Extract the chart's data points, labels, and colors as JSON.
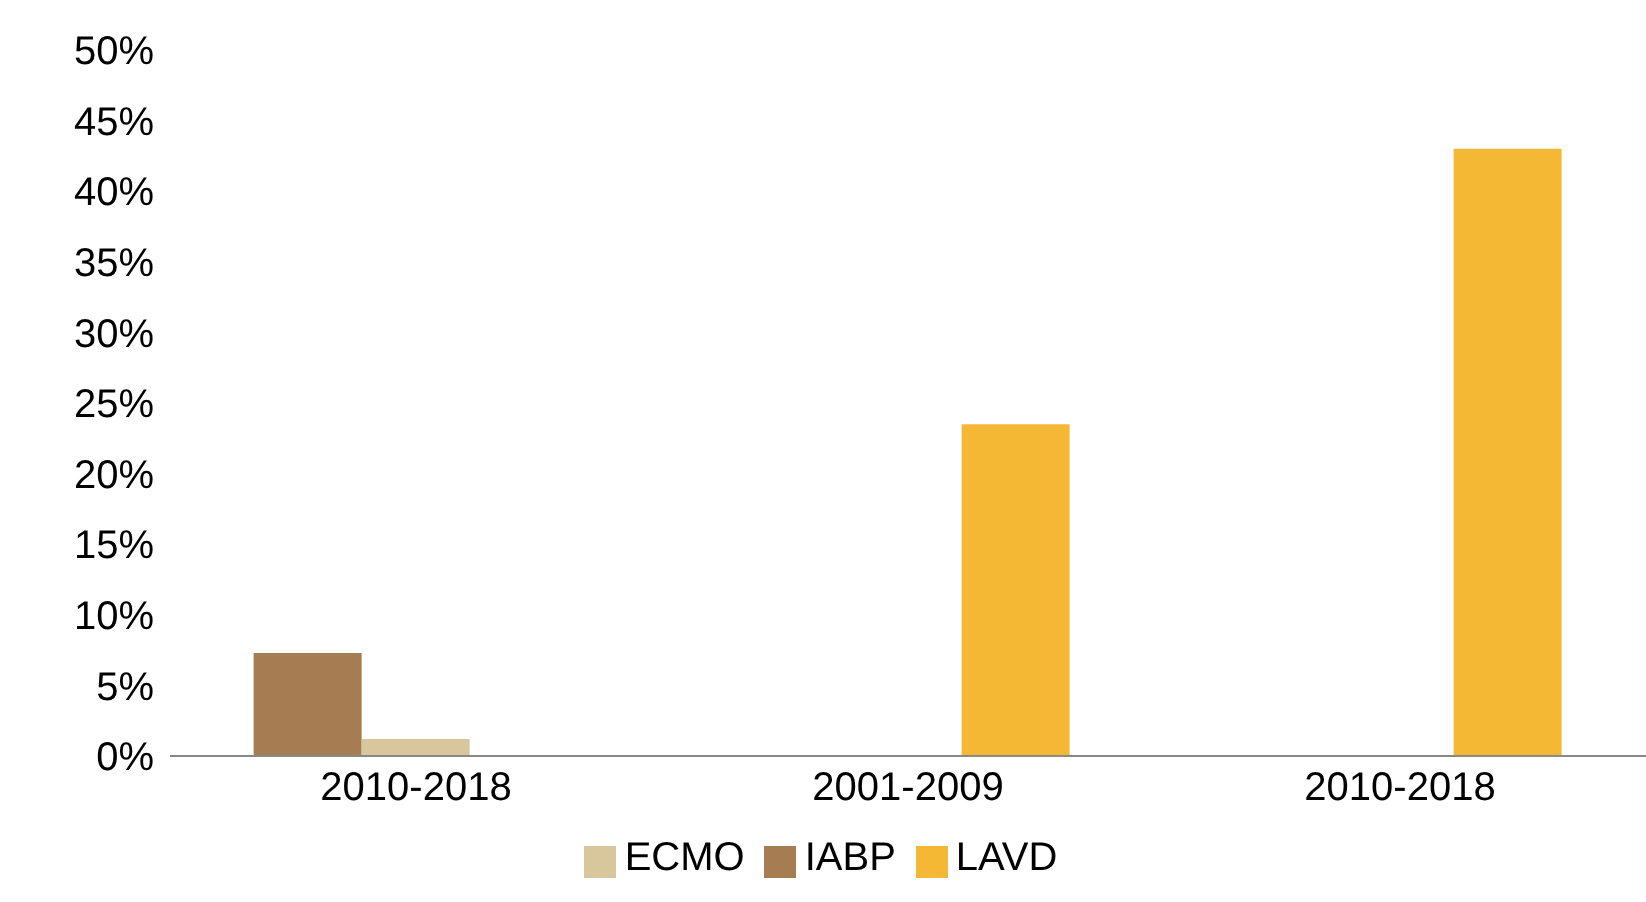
{
  "chart_data": {
    "type": "bar",
    "categories": [
      "2010-2018",
      "2001-2009",
      "2010-2018"
    ],
    "series": [
      {
        "name": "IABP",
        "color": "#a67c52",
        "values": [
          7.3,
          null,
          null
        ]
      },
      {
        "name": "ECMO",
        "color": "#d8c69c",
        "values": [
          1.2,
          null,
          null
        ]
      },
      {
        "name": "LAVD",
        "color": "#f4b834",
        "values": [
          null,
          23.5,
          43
        ]
      }
    ],
    "ylim": [
      0,
      50
    ],
    "yticks": [
      {
        "value": 0,
        "label": "0%"
      },
      {
        "value": 5,
        "label": "5%"
      },
      {
        "value": 10,
        "label": "10%"
      },
      {
        "value": 15,
        "label": "15%"
      },
      {
        "value": 20,
        "label": "20%"
      },
      {
        "value": 25,
        "label": "25%"
      },
      {
        "value": 30,
        "label": "30%"
      },
      {
        "value": 35,
        "label": "35%"
      },
      {
        "value": 40,
        "label": "40%"
      },
      {
        "value": 45,
        "label": "45%"
      },
      {
        "value": 50,
        "label": "50%"
      }
    ],
    "grid": false,
    "legend": "bottom"
  }
}
